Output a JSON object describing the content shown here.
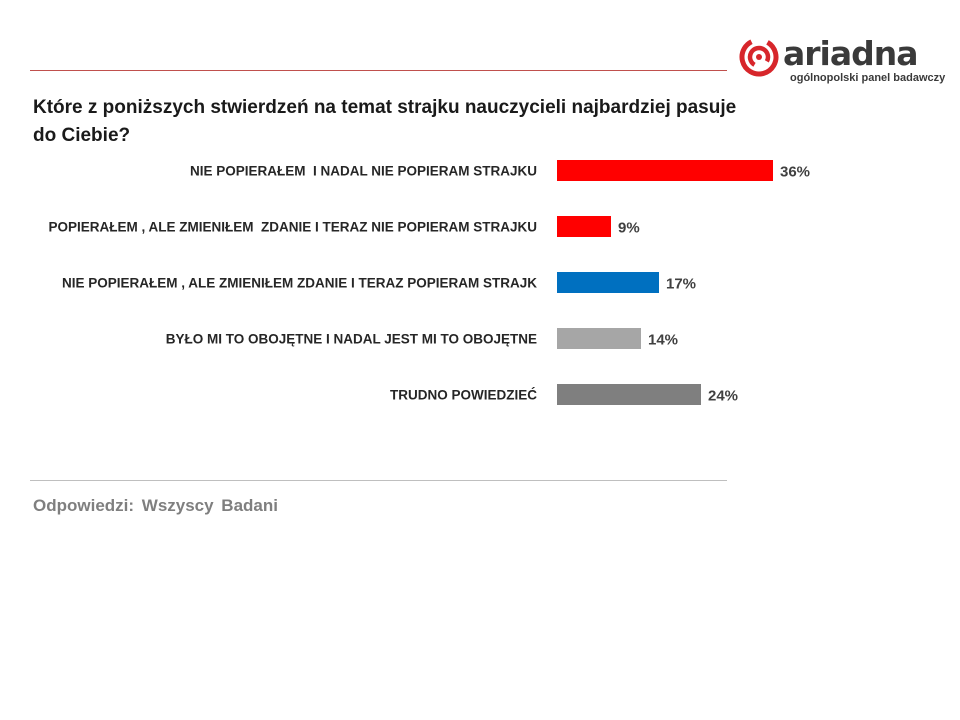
{
  "title": "Które z poniższych stwierdzeń na temat strajku nauczycieli najbardziej pasuje do Ciebie?",
  "logo": {
    "name": "ariadna",
    "tagline": "ogólnopolski panel badawczy",
    "icon": "ariadna-spiral-logo",
    "color": "#d7262b"
  },
  "chart_data": {
    "type": "bar",
    "orientation": "horizontal",
    "categories": [
      "NIE POPIERAŁEM  I NADAL NIE POPIERAM STRAJKU",
      "POPIERAŁEM , ALE ZMIENIŁEM  ZDANIE I TERAZ NIE POPIERAM STRAJKU",
      "NIE POPIERAŁEM , ALE ZMIENIŁEM ZDANIE I TERAZ POPIERAM STRAJK",
      "BYŁO MI TO OBOJĘTNE I NADAL JEST MI TO OBOJĘTNE",
      "TRUDNO POWIEDZIEĆ"
    ],
    "values": [
      36,
      9,
      17,
      14,
      24
    ],
    "value_labels": [
      "36%",
      "9%",
      "17%",
      "14%",
      "24%"
    ],
    "colors": [
      "#ff0000",
      "#ff0000",
      "#0070c0",
      "#a6a6a6",
      "#7f7f7f"
    ],
    "unit": "%",
    "grid": false,
    "legend": "none"
  },
  "footer": "Odpowiedzi: Wszyscy Badani"
}
